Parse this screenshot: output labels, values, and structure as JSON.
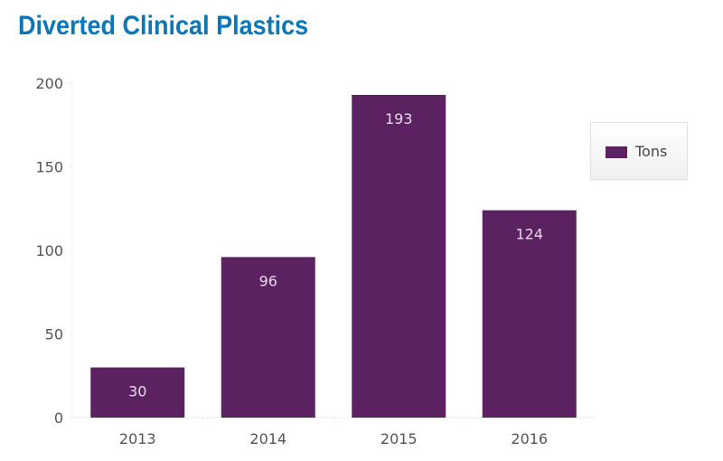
{
  "chart_data": {
    "type": "bar",
    "title": "Diverted Clinical Plastics",
    "categories": [
      "2013",
      "2014",
      "2015",
      "2016"
    ],
    "series": [
      {
        "name": "Tons",
        "values": [
          30,
          96,
          193,
          124
        ],
        "color": "#5b2160"
      }
    ],
    "ylim": [
      0,
      200
    ],
    "yticks": [
      0,
      50,
      100,
      150,
      200
    ],
    "xlabel": "",
    "ylabel": "",
    "grid": false,
    "legend_position": "top-right",
    "data_labels": true
  }
}
